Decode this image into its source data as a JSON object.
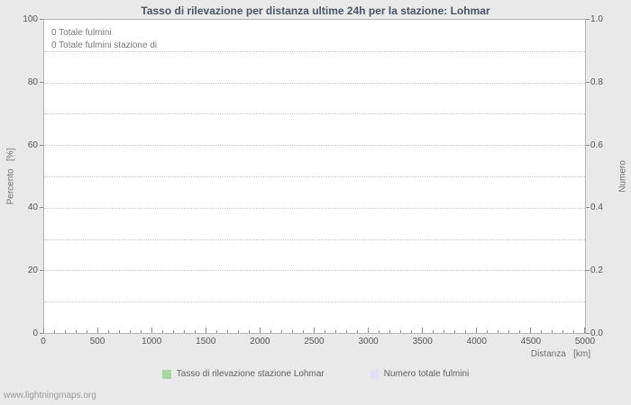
{
  "chart_data": {
    "type": "line",
    "title": "Tasso di rilevazione per distanza ultime 24h per la stazione: Lohmar",
    "xlabel": "Distanza   [km]",
    "ylabel_left": "Percento   [%]",
    "ylabel_right": "Numero",
    "x_range": [
      0,
      5000
    ],
    "x_major_ticks": [
      0,
      500,
      1000,
      1500,
      2000,
      2500,
      3000,
      3500,
      4000,
      4500,
      5000
    ],
    "x_minor_step": 100,
    "y_left_range": [
      0,
      100
    ],
    "y_left_ticks": [
      0,
      20,
      40,
      60,
      80,
      100
    ],
    "y_right_range": [
      0.0,
      1.0
    ],
    "y_right_ticks": [
      "0.0",
      "0.2",
      "0.4",
      "0.6",
      "0.8",
      "1.0"
    ],
    "gridline_step": 10,
    "grid": true,
    "legend_position": "bottom",
    "annotations": [
      "0 Totale fulmini",
      "0 Totale fulmini stazione di"
    ],
    "series": [
      {
        "name": "Tasso di rilevazione stazione Lohmar",
        "color": "#a8d4a0",
        "axis": "left",
        "values": []
      },
      {
        "name": "Numero totale fulmini",
        "color": "#e2e2f6",
        "axis": "right",
        "values": []
      }
    ]
  },
  "footer": {
    "watermark": "www.lightningmaps.org"
  }
}
